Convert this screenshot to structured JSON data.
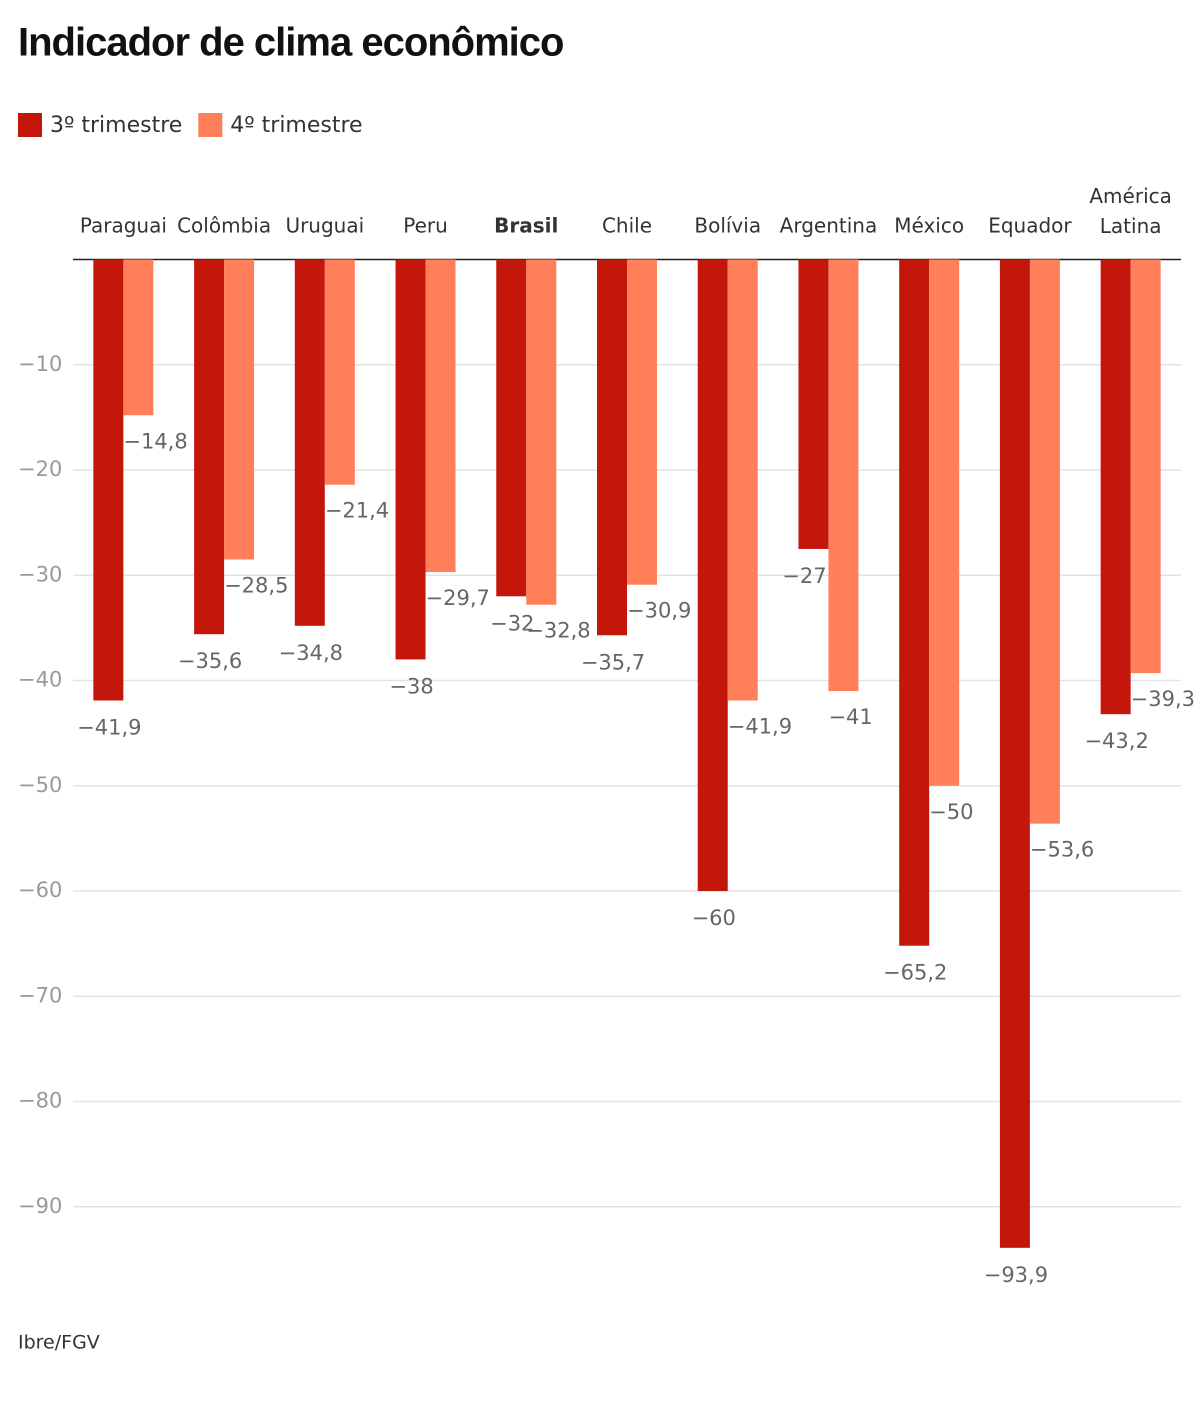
{
  "chart_data": {
    "type": "bar",
    "title": "Indicador de clima econômico",
    "source": "Ibre/FGV",
    "categories": [
      "Paraguai",
      "Colômbia",
      "Uruguai",
      "Peru",
      "Brasil",
      "Chile",
      "Bolívia",
      "Argentina",
      "México",
      "Equador",
      "América Latina"
    ],
    "highlight_category": "Brasil",
    "series": [
      {
        "name": "3º trimestre",
        "color": "#c4170c",
        "values": [
          -41.9,
          -35.6,
          -34.8,
          -38,
          -32,
          -35.7,
          -60,
          -27.5,
          -65.2,
          -93.9,
          -43.2
        ],
        "value_labels": [
          "−41,9",
          "−35,6",
          "−34,8",
          "−38",
          "−32",
          "−35,7",
          "−60",
          "−27,5",
          "−65,2",
          "−93,9",
          "−43,2"
        ]
      },
      {
        "name": "4º trimestre",
        "color": "#ff7f5a",
        "values": [
          -14.8,
          -28.5,
          -21.4,
          -29.7,
          -32.8,
          -30.9,
          -41.9,
          -41,
          -50,
          -53.6,
          -39.3
        ],
        "value_labels": [
          "−14,8",
          "−28,5",
          "−21,4",
          "−29,7",
          "−32,8",
          "−30,9",
          "−41,9",
          "−41",
          "−50",
          "−53,6",
          "−39,3"
        ]
      }
    ],
    "ylim": [
      -95,
      0
    ],
    "yticks": [
      {
        "value": -10,
        "label": "−10"
      },
      {
        "value": -20,
        "label": "−20"
      },
      {
        "value": -30,
        "label": "−30"
      },
      {
        "value": -40,
        "label": "−40"
      },
      {
        "value": -50,
        "label": "−50"
      },
      {
        "value": -60,
        "label": "−60"
      },
      {
        "value": -70,
        "label": "−70"
      },
      {
        "value": -80,
        "label": "−80"
      },
      {
        "value": -90,
        "label": "−90"
      }
    ],
    "grid": true
  }
}
